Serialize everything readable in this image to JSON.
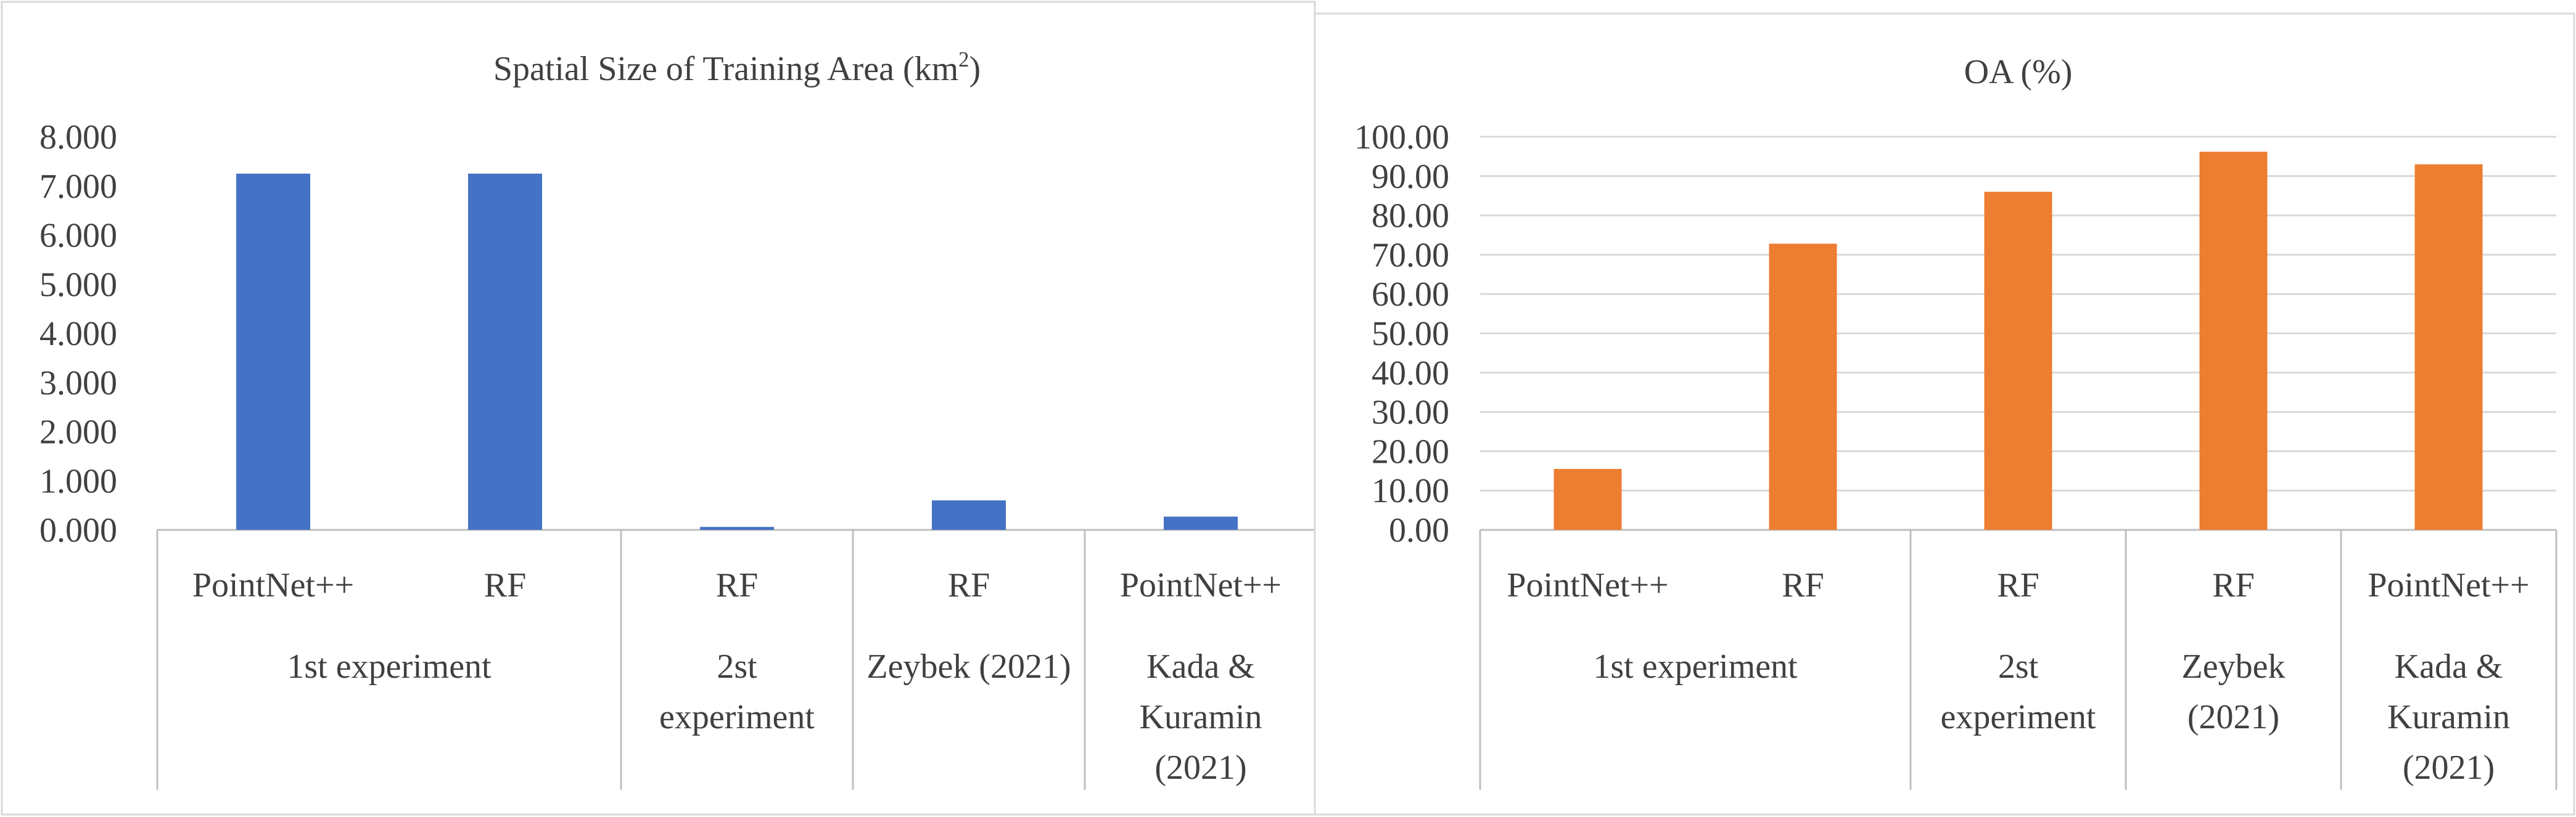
{
  "chart_data": [
    {
      "type": "bar",
      "title": "Spatial Size of Training Area (km²)",
      "title_main": "Spatial Size of Training Area (km",
      "title_sup": "2",
      "title_end": ")",
      "xlabel": "",
      "ylabel": "",
      "ylim": [
        0,
        8
      ],
      "yticks": [
        "0.000",
        "1.000",
        "2.000",
        "3.000",
        "4.000",
        "5.000",
        "6.000",
        "7.000",
        "8.000"
      ],
      "grid": false,
      "legend": "none",
      "color": "#4472c4",
      "categories": [
        "PointNet++",
        "RF",
        "RF",
        "RF",
        "PointNet++"
      ],
      "groups": [
        {
          "label_lines": [
            "1st experiment"
          ],
          "span": 2
        },
        {
          "label_lines": [
            "2st",
            "experiment"
          ],
          "span": 1
        },
        {
          "label_lines": [
            "Zeybek (2021)"
          ],
          "span": 1
        },
        {
          "label_lines": [
            "Kada &",
            "Kuramin",
            "(2021)"
          ],
          "span": 1
        }
      ],
      "values": [
        7.25,
        7.25,
        0.06,
        0.6,
        0.27
      ]
    },
    {
      "type": "bar",
      "title": "OA (%)",
      "title_main": "OA (%)",
      "title_sup": "",
      "title_end": "",
      "xlabel": "",
      "ylabel": "",
      "ylim": [
        0,
        100
      ],
      "yticks": [
        "0.00",
        "10.00",
        "20.00",
        "30.00",
        "40.00",
        "50.00",
        "60.00",
        "70.00",
        "80.00",
        "90.00",
        "100.00"
      ],
      "grid": true,
      "legend": "none",
      "color": "#ed7d31",
      "categories": [
        "PointNet++",
        "RF",
        "RF",
        "RF",
        "PointNet++"
      ],
      "groups": [
        {
          "label_lines": [
            "1st experiment"
          ],
          "span": 2
        },
        {
          "label_lines": [
            "2st",
            "experiment"
          ],
          "span": 1
        },
        {
          "label_lines": [
            "Zeybek",
            "(2021)"
          ],
          "span": 1
        },
        {
          "label_lines": [
            "Kada &",
            "Kuramin",
            "(2021)"
          ],
          "span": 1
        }
      ],
      "values": [
        15.5,
        72.8,
        86.0,
        96.2,
        93.0
      ]
    }
  ]
}
